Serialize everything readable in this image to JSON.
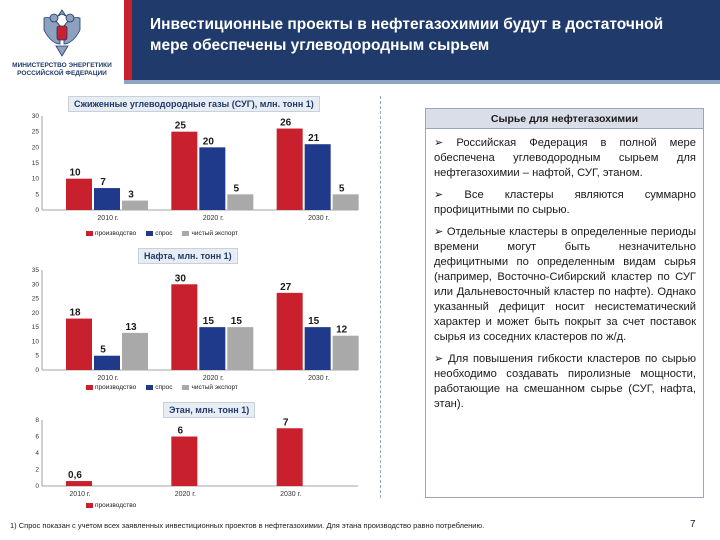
{
  "header": {
    "title": "Инвестиционные проекты в нефтегазохимии будут в достаточной мере обеспечены углеводородным сырьем",
    "logo_text": "МИНИСТЕРСТВО ЭНЕРГЕТИКИ РОССИЙСКОЙ ФЕДЕРАЦИИ"
  },
  "colors": {
    "production": "#c8202c",
    "demand": "#1f3a8a",
    "export": "#a9a9a9",
    "header": "#1f3a6b"
  },
  "chart_data": [
    {
      "type": "bar",
      "title": "Сжиженные углеводородные газы (СУГ), млн. тонн 1)",
      "categories": [
        "2010 г.",
        "2020 г.",
        "2030 г."
      ],
      "ylim": [
        0,
        30
      ],
      "yticks": [
        "0",
        "5",
        "10",
        "15",
        "20",
        "25",
        "30"
      ],
      "series": [
        {
          "name": "производство",
          "values": [
            10,
            25,
            26
          ]
        },
        {
          "name": "спрос",
          "values": [
            7,
            20,
            21
          ]
        },
        {
          "name": "чистый экспорт",
          "values": [
            3,
            5,
            5
          ]
        }
      ]
    },
    {
      "type": "bar",
      "title": "Нафта, млн. тонн 1)",
      "categories": [
        "2010 г.",
        "2020 г.",
        "2030 г."
      ],
      "ylim": [
        0,
        35
      ],
      "yticks": [
        "0",
        "5",
        "10",
        "15",
        "20",
        "25",
        "30",
        "35"
      ],
      "series": [
        {
          "name": "производство",
          "values": [
            18,
            30,
            27
          ]
        },
        {
          "name": "спрос",
          "values": [
            5,
            15,
            15
          ]
        },
        {
          "name": "чистый экспорт",
          "values": [
            13,
            15,
            12
          ]
        }
      ]
    },
    {
      "type": "bar",
      "title": "Этан, млн. тонн 1)",
      "categories": [
        "2010 г.",
        "2020 г.",
        "2030 г."
      ],
      "ylim": [
        0,
        8
      ],
      "yticks": [
        "0",
        "2",
        "4",
        "6",
        "8"
      ],
      "series": [
        {
          "name": "производство",
          "values": [
            0.6,
            6,
            7
          ]
        }
      ]
    }
  ],
  "panel": {
    "title": "Сырье для нефтегазохимии",
    "bullets": [
      "Российская Федерация в полной мере обеспечена углеводородным сырьем для нефтегазохимии – нафтой, СУГ, этаном.",
      "Все кластеры являются суммарно профицитными по сырью.",
      "Отдельные кластеры в определенные периоды времени могут быть незначительно дефицитными по определенным видам сырья (например, Восточно-Сибирский кластер по СУГ или Дальневосточный кластер по нафте). Однако указанный дефицит носит несистематический характер и может быть покрыт за счет поставок сырья из соседних кластеров по ж/д.",
      "Для повышения гибкости кластеров по сырью необходимо создавать пиролизные мощности, работающие на смешанном сырье (СУГ, нафта, этан)."
    ]
  },
  "footnote": "1) Спрос показан с учетом всех заявленных инвестиционных проектов в нефтегазохимии. Для этана производство равно потреблению.",
  "page_number": "7"
}
